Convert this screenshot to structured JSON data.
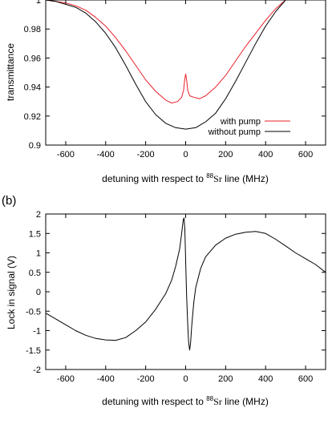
{
  "panel_b_label": "(b)",
  "chart_data": [
    {
      "type": "line",
      "title": "",
      "xlabel": {
        "prefix": "detuning with respect to ",
        "sup": "88",
        "element": "Sr",
        "suffix": " line (MHz)"
      },
      "ylabel": "transmittance",
      "xlim": [
        -700,
        700
      ],
      "ylim": [
        0.9,
        1.0
      ],
      "xticks": [
        -600,
        -400,
        -200,
        0,
        200,
        400,
        600
      ],
      "yticks": [
        0.9,
        0.92,
        0.94,
        0.96,
        0.98,
        1.0
      ],
      "ytick_labels": [
        "0.9",
        "0.92",
        "0.94",
        "0.96",
        "0.98",
        "1"
      ],
      "legend_position": "bottom-right",
      "series": [
        {
          "name": "with pump",
          "color": "#e8202a",
          "x": [
            -700,
            -650,
            -600,
            -550,
            -500,
            -450,
            -400,
            -350,
            -300,
            -250,
            -200,
            -150,
            -100,
            -70,
            -40,
            -20,
            -10,
            -5,
            0,
            5,
            10,
            20,
            40,
            70,
            100,
            150,
            200,
            250,
            300,
            350,
            400,
            450,
            500
          ],
          "y": [
            1.0,
            0.999,
            0.998,
            0.996,
            0.993,
            0.988,
            0.982,
            0.974,
            0.965,
            0.955,
            0.945,
            0.937,
            0.931,
            0.929,
            0.93,
            0.933,
            0.938,
            0.945,
            0.949,
            0.945,
            0.938,
            0.934,
            0.933,
            0.932,
            0.934,
            0.94,
            0.948,
            0.958,
            0.968,
            0.977,
            0.986,
            0.994,
            1.0
          ]
        },
        {
          "name": "without pump",
          "color": "#000000",
          "x": [
            -700,
            -650,
            -600,
            -550,
            -500,
            -450,
            -400,
            -350,
            -300,
            -250,
            -200,
            -150,
            -100,
            -50,
            0,
            50,
            100,
            150,
            200,
            250,
            300,
            350,
            400,
            450,
            500
          ],
          "y": [
            1.0,
            0.999,
            0.997,
            0.995,
            0.991,
            0.985,
            0.977,
            0.967,
            0.955,
            0.942,
            0.93,
            0.921,
            0.915,
            0.912,
            0.911,
            0.912,
            0.916,
            0.922,
            0.932,
            0.944,
            0.957,
            0.97,
            0.982,
            0.992,
            1.0
          ]
        }
      ]
    },
    {
      "type": "line",
      "title": "",
      "xlabel": {
        "prefix": "detuning with respect to ",
        "sup": "88",
        "element": "Sr",
        "suffix": " line (MHz)"
      },
      "ylabel": "Lock in signal (V)",
      "xlim": [
        -700,
        700
      ],
      "ylim": [
        -2,
        2
      ],
      "xticks": [
        -600,
        -400,
        -200,
        0,
        200,
        400,
        600
      ],
      "yticks": [
        -2,
        -1.5,
        -1,
        -0.5,
        0,
        0.5,
        1,
        1.5,
        2
      ],
      "ytick_labels": [
        "-2",
        "-1.5",
        "-1",
        "-0.5",
        "0",
        "0.5",
        "1",
        "1.5",
        "2"
      ],
      "series": [
        {
          "name": "",
          "color": "#000000",
          "x": [
            -700,
            -650,
            -600,
            -550,
            -500,
            -450,
            -400,
            -350,
            -300,
            -250,
            -200,
            -150,
            -100,
            -70,
            -50,
            -30,
            -20,
            -12,
            -8,
            -4,
            0,
            5,
            10,
            15,
            20,
            25,
            30,
            40,
            50,
            75,
            100,
            150,
            200,
            250,
            300,
            350,
            400,
            450,
            500,
            550,
            600,
            650,
            700
          ],
          "y": [
            -0.55,
            -0.7,
            -0.85,
            -1.0,
            -1.12,
            -1.2,
            -1.24,
            -1.25,
            -1.18,
            -1.0,
            -0.78,
            -0.45,
            -0.05,
            0.3,
            0.65,
            1.1,
            1.5,
            1.85,
            1.9,
            1.6,
            0.8,
            -0.1,
            -0.8,
            -1.3,
            -1.5,
            -1.3,
            -0.9,
            -0.3,
            0.1,
            0.6,
            0.9,
            1.2,
            1.38,
            1.48,
            1.53,
            1.55,
            1.5,
            1.35,
            1.18,
            1.0,
            0.85,
            0.7,
            0.5
          ]
        }
      ]
    }
  ]
}
